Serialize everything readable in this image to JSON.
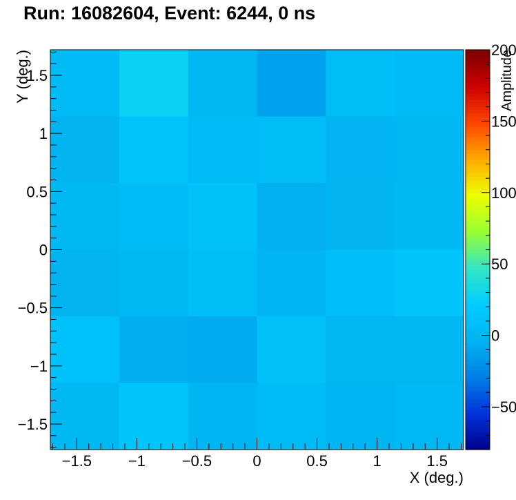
{
  "chart_data": {
    "type": "heatmap",
    "title": "Run: 16082604, Event: 6244, 0 ns",
    "xlabel": "X (deg.)",
    "ylabel": "Y (deg.)",
    "zlabel": "Amplitude",
    "xlim": [
      -1.72,
      1.72
    ],
    "ylim": [
      -1.72,
      1.72
    ],
    "zlim": [
      -80,
      200
    ],
    "x_ticks": [
      -1.5,
      -1,
      -0.5,
      0,
      0.5,
      1,
      1.5
    ],
    "y_ticks": [
      -1.5,
      -1,
      -0.5,
      0,
      0.5,
      1,
      1.5
    ],
    "z_ticks": [
      -50,
      0,
      50,
      100,
      150,
      200
    ],
    "x_tick_labels": [
      "−1.5",
      "−1",
      "−0.5",
      "0",
      "0.5",
      "1",
      "1.5"
    ],
    "y_tick_labels": [
      "−1.5",
      "−1",
      "−0.5",
      "0",
      "0.5",
      "1",
      "1.5"
    ],
    "z_tick_labels": [
      "−50",
      "0",
      "50",
      "100",
      "150",
      "200"
    ],
    "x_edges": [
      -1.72,
      -1.147,
      -0.573,
      0,
      0.573,
      1.147,
      1.72
    ],
    "y_edges": [
      -1.72,
      -1.147,
      -0.573,
      0,
      0.573,
      1.147,
      1.72
    ],
    "colorscale": [
      "#00008a",
      "#0033d9",
      "#0080e6",
      "#00b3f0",
      "#00ccff",
      "#33e6c4",
      "#99ff33",
      "#eeff00",
      "#ffaa00",
      "#ff4400",
      "#cc0000",
      "#7a0000"
    ],
    "values_top_to_bottom": [
      [
        5,
        28,
        0,
        -12,
        7,
        5
      ],
      [
        -3,
        13,
        4,
        7,
        -2,
        0
      ],
      [
        2,
        6,
        12,
        -5,
        -3,
        2
      ],
      [
        -3,
        2,
        9,
        -1,
        8,
        15
      ],
      [
        11,
        -6,
        -7,
        10,
        0,
        0
      ],
      [
        2,
        15,
        -1,
        6,
        -1,
        1
      ]
    ]
  }
}
